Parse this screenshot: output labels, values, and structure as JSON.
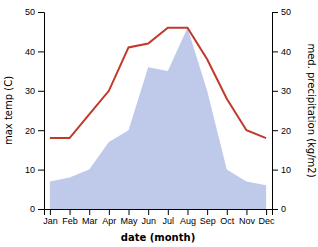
{
  "chart_data": {
    "type": "line",
    "xlabel": "date (month)",
    "ylabel": "max temp (C)",
    "y2label": "med. precipitation (kg/m2)",
    "categories": [
      "Jan",
      "Feb",
      "Mar",
      "Apr",
      "May",
      "Jun",
      "Jul",
      "Aug",
      "Sep",
      "Oct",
      "Nov",
      "Dec"
    ],
    "series": [
      {
        "type": "line",
        "color": "#c0392b",
        "values": [
          18,
          18,
          24,
          30,
          41,
          42,
          46,
          46,
          38,
          28,
          20,
          18
        ]
      },
      {
        "type": "area",
        "color": "#b8c4e8",
        "axis": "y2",
        "values": [
          7,
          8,
          10,
          17,
          20,
          36,
          35,
          46,
          30,
          10,
          7,
          6
        ]
      }
    ],
    "ylim": [
      0,
      50
    ],
    "yticks": [
      0,
      10,
      20,
      30,
      40,
      50
    ],
    "y2lim": [
      0,
      50
    ],
    "y2ticks": [
      0,
      10,
      20,
      30,
      40,
      50
    ],
    "grid": false
  }
}
